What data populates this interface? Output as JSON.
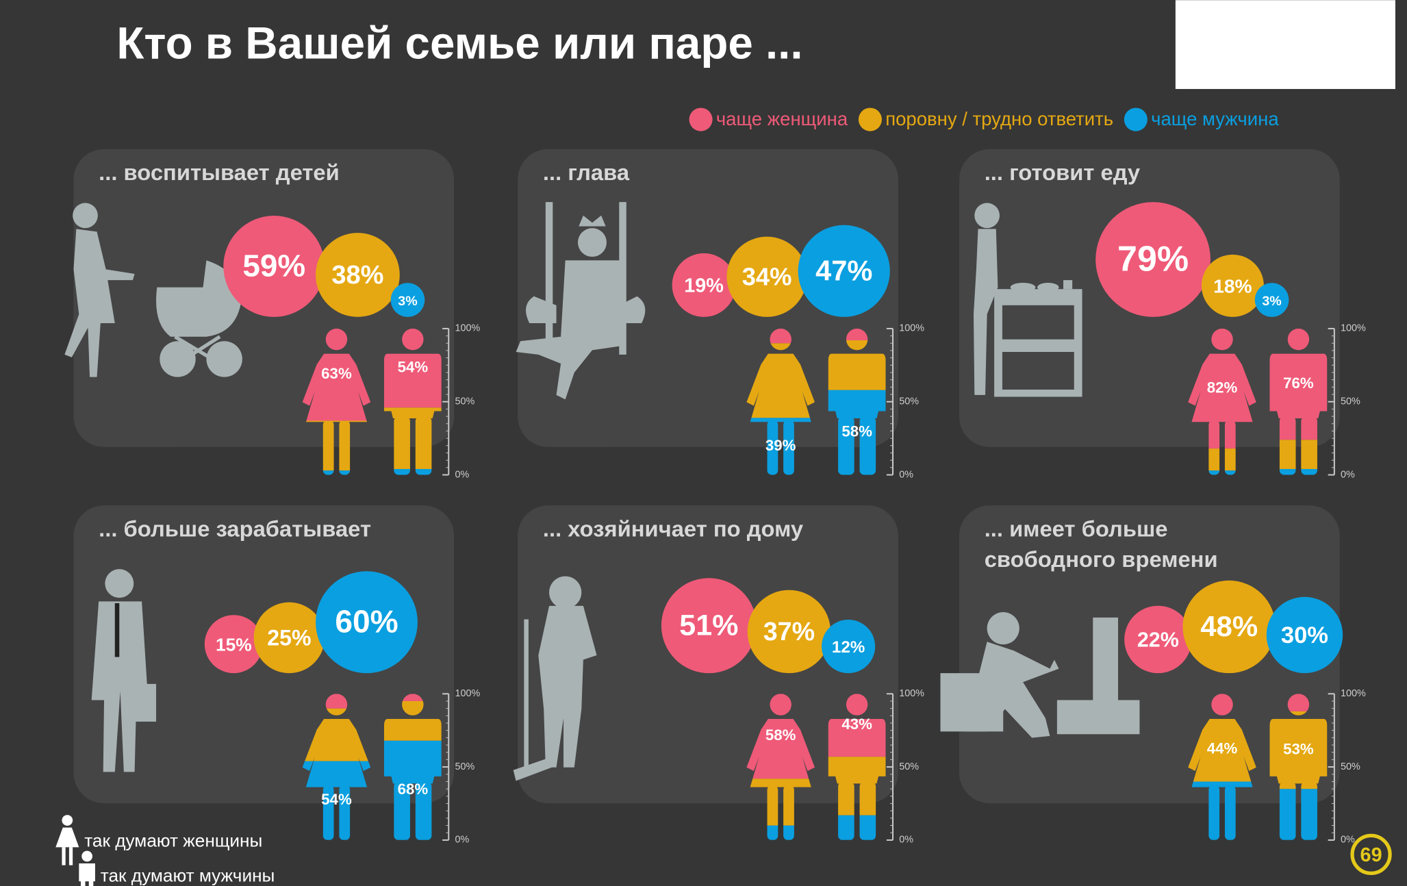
{
  "title": "Кто в Вашей семье или паре ...",
  "legend": [
    {
      "label": "чаще женщина",
      "color": "#ef5a78"
    },
    {
      "label": "поровну / трудно ответить",
      "color": "#e5a812"
    },
    {
      "label": "чаще мужчина",
      "color": "#0a9fe0"
    }
  ],
  "scale_ticks": [
    {
      "value": 100,
      "label": "100%"
    },
    {
      "value": 50,
      "label": "50%"
    },
    {
      "value": 0,
      "label": "0%"
    }
  ],
  "panels": [
    {
      "title": [
        "... воспитывает детей"
      ],
      "bubbles": {
        "values": [
          59,
          38,
          3
        ],
        "value_labels": [
          "59%",
          "38%",
          "3%"
        ]
      },
      "women": {
        "values": [
          63,
          34,
          3
        ],
        "value_labels": [
          "63%",
          null,
          null
        ]
      },
      "men": {
        "values": [
          54,
          42,
          4
        ],
        "value_labels": [
          "54%",
          null,
          null
        ]
      }
    },
    {
      "title": [
        "... глава"
      ],
      "bubbles": {
        "values": [
          19,
          34,
          47
        ],
        "value_labels": [
          "19%",
          "34%",
          "47%"
        ]
      },
      "women": {
        "values": [
          10,
          51,
          39
        ],
        "value_labels": [
          null,
          null,
          "39%"
        ]
      },
      "men": {
        "values": [
          8,
          34,
          58
        ],
        "value_labels": [
          null,
          null,
          "58%"
        ]
      }
    },
    {
      "title": [
        "... готовит еду"
      ],
      "bubbles": {
        "values": [
          79,
          18,
          3
        ],
        "value_labels": [
          "79%",
          "18%",
          "3%"
        ]
      },
      "women": {
        "values": [
          82,
          15,
          3
        ],
        "value_labels": [
          "82%",
          null,
          null
        ]
      },
      "men": {
        "values": [
          76,
          20,
          4
        ],
        "value_labels": [
          "76%",
          null,
          null
        ]
      }
    },
    {
      "title": [
        "... больше зарабатывает"
      ],
      "bubbles": {
        "values": [
          15,
          25,
          60
        ],
        "value_labels": [
          "15%",
          "25%",
          "60%"
        ]
      },
      "women": {
        "values": [
          10,
          36,
          54
        ],
        "value_labels": [
          null,
          null,
          "54%"
        ]
      },
      "men": {
        "values": [
          5,
          27,
          68
        ],
        "value_labels": [
          null,
          null,
          "68%"
        ]
      }
    },
    {
      "title": [
        "... хозяйничает по дому"
      ],
      "bubbles": {
        "values": [
          51,
          37,
          12
        ],
        "value_labels": [
          "51%",
          "37%",
          "12%"
        ]
      },
      "women": {
        "values": [
          58,
          32,
          10
        ],
        "value_labels": [
          "58%",
          null,
          null
        ]
      },
      "men": {
        "values": [
          43,
          40,
          17
        ],
        "value_labels": [
          "43%",
          null,
          null
        ]
      }
    },
    {
      "title": [
        "... имеет больше",
        "свободного времени"
      ],
      "bubbles": {
        "values": [
          22,
          48,
          30
        ],
        "value_labels": [
          "22%",
          "48%",
          "30%"
        ]
      },
      "women": {
        "values": [
          16,
          44,
          40
        ],
        "value_labels": [
          null,
          "44%",
          null
        ]
      },
      "men": {
        "values": [
          12,
          53,
          35
        ],
        "value_labels": [
          null,
          "53%",
          null
        ]
      }
    }
  ],
  "figure_legend": [
    "так думают женщины",
    "так думают мужчины"
  ],
  "logo": "69"
}
